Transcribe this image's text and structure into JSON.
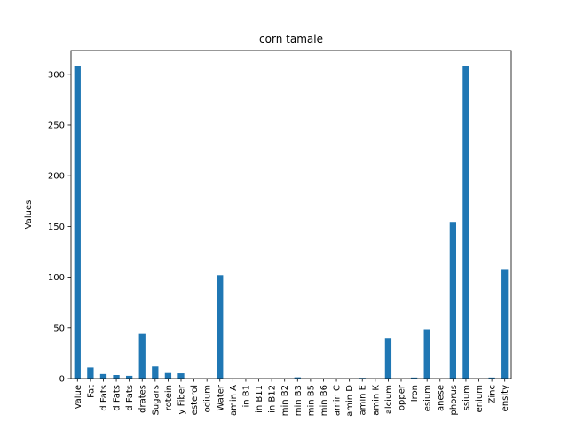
{
  "chart_data": {
    "type": "bar",
    "title": "corn tamale",
    "xlabel": "",
    "ylabel": "Values",
    "ylim": [
      0,
      323.4
    ],
    "yticks": [
      0,
      50,
      100,
      150,
      200,
      250,
      300
    ],
    "grid": false,
    "legend": "none",
    "bar_color": "#1f77b4",
    "categories": [
      "Value",
      "Fat",
      "d Fats",
      "d Fats",
      "d Fats",
      "drates",
      "Sugars",
      "rotein",
      "y Fiber",
      "esterol",
      "odium",
      "Water",
      "amin A",
      "in B1",
      "in B11",
      "in B12",
      "min B2",
      "min B3",
      "min B5",
      "min B6",
      "amin C",
      "amin D",
      "amin E",
      "amin K",
      "alcium",
      "opper",
      "Iron",
      "esium",
      "anese",
      "phorus",
      "ssium",
      "enium",
      "Zinc",
      "ensity"
    ],
    "values": [
      308,
      11,
      4.5,
      3.5,
      2.7,
      44,
      12,
      5.5,
      5.2,
      0,
      0,
      102,
      0,
      0,
      0,
      0,
      0,
      1.2,
      0,
      0,
      0,
      0,
      0.7,
      0,
      40,
      0,
      1,
      48.5,
      0,
      154.5,
      308,
      0,
      1,
      108
    ]
  }
}
